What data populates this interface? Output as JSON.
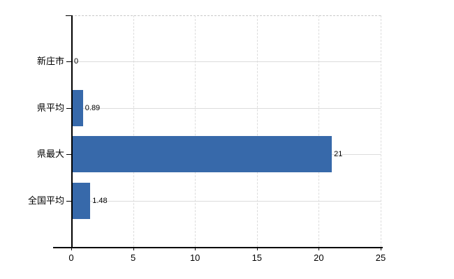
{
  "chart_data": {
    "type": "bar",
    "orientation": "horizontal",
    "title": "",
    "xlabel": "",
    "ylabel": "",
    "categories": [
      "新庄市",
      "県平均",
      "県最大",
      "全国平均"
    ],
    "values": [
      0,
      0.89,
      21,
      1.48
    ],
    "value_labels": [
      "0",
      "0.89",
      "21",
      "1.48"
    ],
    "x_ticks": [
      0,
      5,
      10,
      15,
      20,
      25
    ],
    "x_tick_labels": [
      "0",
      "5",
      "10",
      "15",
      "20",
      "25"
    ],
    "xlim": [
      0,
      25
    ],
    "grid": true,
    "legend": "none",
    "colors": {
      "bar": "#3769aa",
      "grid": "#dcdcdc",
      "plot_border": "#c9c9c9",
      "axis": "#000000",
      "text": "#000000",
      "background": "#ffffff"
    }
  }
}
